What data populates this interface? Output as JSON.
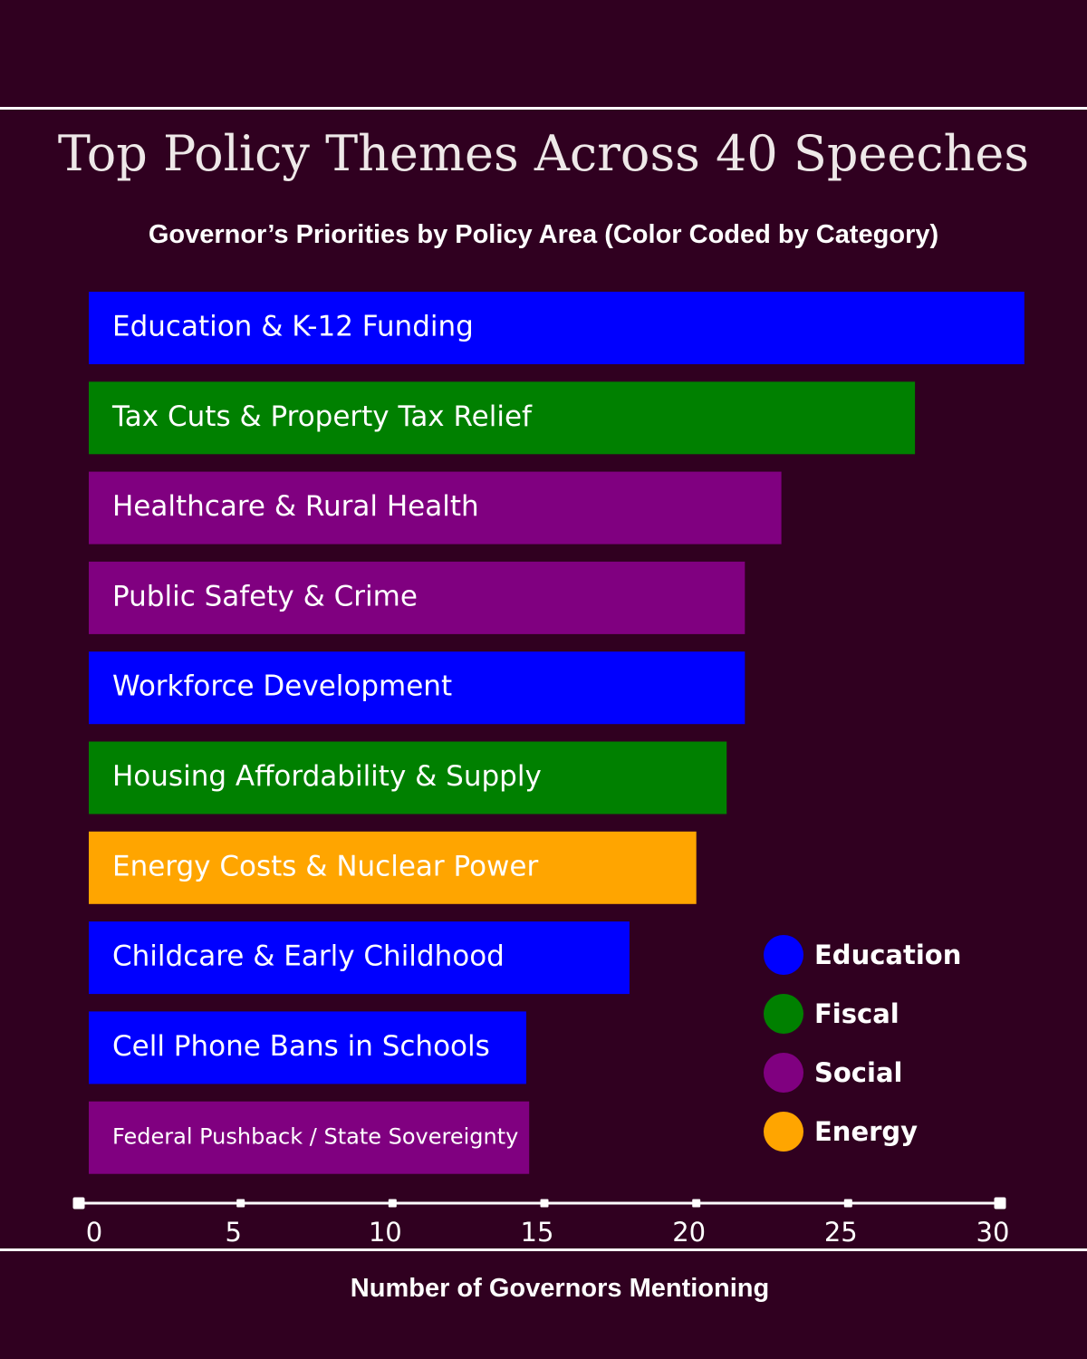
{
  "chart_data": {
    "type": "bar",
    "orientation": "horizontal",
    "title": "Top Policy Themes Across 40 Speeches",
    "subtitle": "Governor’s Priorities by Policy Area (Color Coded by Category)",
    "xlabel": "Number of Governors Mentioning",
    "xlim": [
      0,
      30
    ],
    "xticks": [
      "0",
      "5",
      "10",
      "15",
      "20",
      "25",
      "30"
    ],
    "grid": false,
    "legend_position": "bottom-right",
    "categories": [
      "Education & K-12 Funding",
      "Tax Cuts & Property Tax Relief",
      "Healthcare & Rural Health",
      "Public Safety & Crime",
      "Workforce Development",
      "Housing Affordability & Supply",
      "Energy Costs & Nuclear Power",
      "Childcare & Early Childhood",
      "Cell Phone Bans in Schools",
      "Federal Pushback / State Sovereignty"
    ],
    "values": [
      30.8,
      27.2,
      22.8,
      21.6,
      21.6,
      21.0,
      20.0,
      17.8,
      14.4,
      14.5
    ],
    "bar_categories": [
      "Education",
      "Fiscal",
      "Social",
      "Social",
      "Education",
      "Fiscal",
      "Energy",
      "Education",
      "Education",
      "Social"
    ],
    "legend": [
      {
        "name": "Education",
        "color": "#0000ff"
      },
      {
        "name": "Fiscal",
        "color": "#008000"
      },
      {
        "name": "Social",
        "color": "#800080"
      },
      {
        "name": "Energy",
        "color": "#ffa500"
      }
    ]
  }
}
